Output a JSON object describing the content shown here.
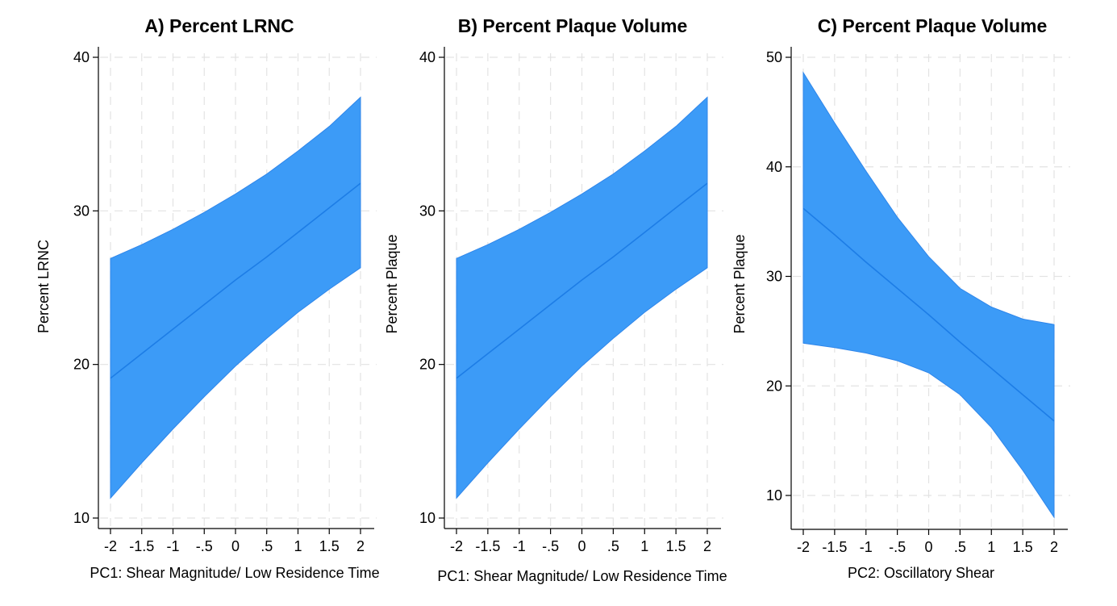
{
  "colors": {
    "band_fill": "#3c9bf7",
    "band_edge": "#2f86ea",
    "line": "#1d7de6",
    "grid": "#e3e3e3",
    "axis": "#000000"
  },
  "chart_data": [
    {
      "type": "area",
      "title": "A) Percent LRNC",
      "xlabel": "PC1: Shear Magnitude/ Low Residence Time",
      "ylabel": "Percent LRNC",
      "grid": true,
      "xlim": [
        -2,
        2
      ],
      "ylim": [
        10,
        40
      ],
      "x_tick_values": [
        -2,
        -1.5,
        -1,
        -0.5,
        0,
        0.5,
        1,
        1.5,
        2
      ],
      "x_tick_labels": [
        "-2",
        "-1.5",
        "-1",
        "-.5",
        "0",
        ".5",
        "1",
        "1.5",
        "2"
      ],
      "y_tick_values": [
        10,
        20,
        30,
        40
      ],
      "y_tick_labels": [
        "10",
        "20",
        "30",
        "40"
      ],
      "x": [
        -2,
        -1.5,
        -1,
        -0.5,
        0,
        0.5,
        1,
        1.5,
        2
      ],
      "series": [
        {
          "name": "",
          "role": "upper",
          "values": [
            26.9,
            27.8,
            28.8,
            29.9,
            31.1,
            32.4,
            33.9,
            35.5,
            37.4
          ]
        },
        {
          "name": "",
          "role": "estimate",
          "values": [
            19.1,
            20.7,
            22.3,
            23.9,
            25.5,
            27.0,
            28.6,
            30.2,
            31.8
          ]
        },
        {
          "name": "",
          "role": "lower",
          "values": [
            11.3,
            13.6,
            15.8,
            17.9,
            19.9,
            21.7,
            23.4,
            24.9,
            26.3
          ]
        }
      ]
    },
    {
      "type": "area",
      "title": "B) Percent Plaque Volume",
      "xlabel": "PC1: Shear Magnitude/ Low Residence Time",
      "ylabel": "Percent Plaque",
      "grid": true,
      "xlim": [
        -2,
        2
      ],
      "ylim": [
        10,
        40
      ],
      "x_tick_values": [
        -2,
        -1.5,
        -1,
        -0.5,
        0,
        0.5,
        1,
        1.5,
        2
      ],
      "x_tick_labels": [
        "-2",
        "-1.5",
        "-1",
        "-.5",
        "0",
        ".5",
        "1",
        "1.5",
        "2"
      ],
      "y_tick_values": [
        10,
        20,
        30,
        40
      ],
      "y_tick_labels": [
        "10",
        "20",
        "30",
        "40"
      ],
      "x": [
        -2,
        -1.5,
        -1,
        -0.5,
        0,
        0.5,
        1,
        1.5,
        2
      ],
      "series": [
        {
          "name": "",
          "role": "upper",
          "values": [
            26.9,
            27.8,
            28.8,
            29.9,
            31.1,
            32.4,
            33.9,
            35.5,
            37.4
          ]
        },
        {
          "name": "",
          "role": "estimate",
          "values": [
            19.1,
            20.7,
            22.3,
            23.9,
            25.5,
            27.0,
            28.6,
            30.2,
            31.8
          ]
        },
        {
          "name": "",
          "role": "lower",
          "values": [
            11.3,
            13.6,
            15.8,
            17.9,
            19.9,
            21.7,
            23.4,
            24.9,
            26.3
          ]
        }
      ]
    },
    {
      "type": "area",
      "title": "C) Percent Plaque Volume",
      "xlabel": "PC2: Oscillatory Shear",
      "ylabel": "Percent Plaque",
      "grid": true,
      "xlim": [
        -2,
        2
      ],
      "ylim": [
        10,
        50
      ],
      "x_tick_values": [
        -2,
        -1.5,
        -1,
        -0.5,
        0,
        0.5,
        1,
        1.5,
        2
      ],
      "x_tick_labels": [
        "-2",
        "-1.5",
        "-1",
        "-.5",
        "0",
        ".5",
        "1",
        "1.5",
        "2"
      ],
      "y_tick_values": [
        10,
        20,
        30,
        40,
        50
      ],
      "y_tick_labels": [
        "10",
        "20",
        "30",
        "40",
        "50"
      ],
      "x": [
        -2,
        -1.5,
        -1,
        -0.5,
        0,
        0.5,
        1,
        1.5,
        2
      ],
      "series": [
        {
          "name": "",
          "role": "upper",
          "values": [
            48.6,
            44.0,
            39.6,
            35.4,
            31.8,
            28.9,
            27.2,
            26.1,
            25.6
          ]
        },
        {
          "name": "",
          "role": "estimate",
          "values": [
            36.2,
            33.8,
            31.3,
            28.9,
            26.5,
            24.0,
            21.6,
            19.2,
            16.8
          ]
        },
        {
          "name": "",
          "role": "lower",
          "values": [
            23.9,
            23.5,
            23.0,
            22.3,
            21.2,
            19.2,
            16.2,
            12.3,
            8.0
          ]
        }
      ]
    }
  ]
}
